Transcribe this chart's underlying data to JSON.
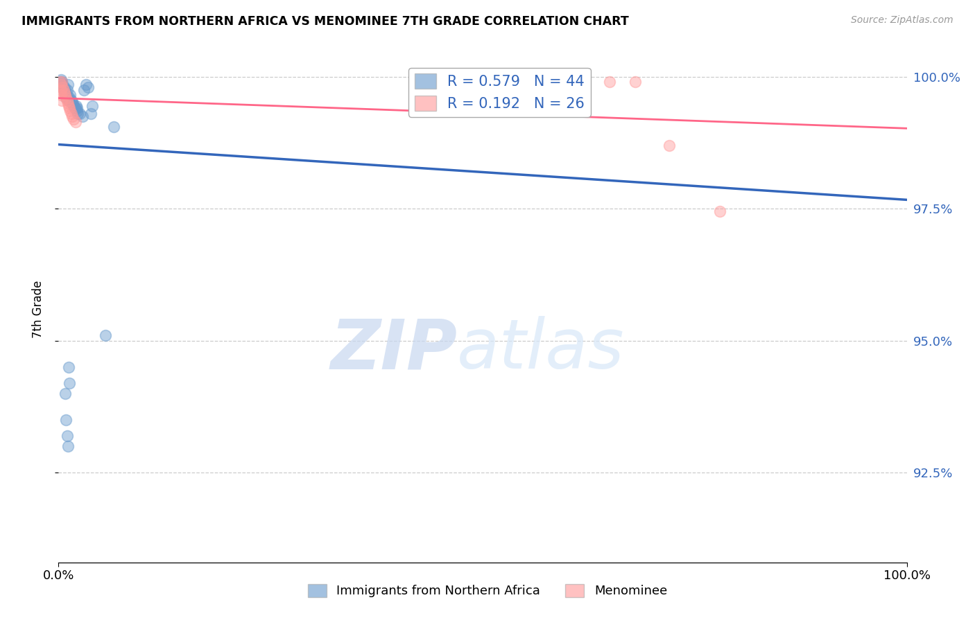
{
  "title": "IMMIGRANTS FROM NORTHERN AFRICA VS MENOMINEE 7TH GRADE CORRELATION CHART",
  "source": "Source: ZipAtlas.com",
  "ylabel": "7th Grade",
  "xlim": [
    0.0,
    1.0
  ],
  "ylim": [
    0.908,
    1.004
  ],
  "yticks": [
    0.925,
    0.95,
    0.975,
    1.0
  ],
  "ytick_labels": [
    "92.5%",
    "95.0%",
    "97.5%",
    "100.0%"
  ],
  "xtick_labels": [
    "0.0%",
    "100.0%"
  ],
  "xticks": [
    0.0,
    1.0
  ],
  "legend_blue_r": "R = 0.579",
  "legend_blue_n": "N = 44",
  "legend_pink_r": "R = 0.192",
  "legend_pink_n": "N = 26",
  "blue_color": "#6699CC",
  "pink_color": "#FF9999",
  "blue_line_color": "#3366BB",
  "pink_line_color": "#FF6688",
  "watermark_zip": "ZIP",
  "watermark_atlas": "atlas",
  "blue_scatter": [
    [
      0.002,
      0.999
    ],
    [
      0.003,
      0.9995
    ],
    [
      0.003,
      0.9985
    ],
    [
      0.004,
      0.999
    ],
    [
      0.005,
      0.9985
    ],
    [
      0.005,
      0.998
    ],
    [
      0.006,
      0.9975
    ],
    [
      0.007,
      0.998
    ],
    [
      0.007,
      0.9975
    ],
    [
      0.008,
      0.997
    ],
    [
      0.008,
      0.9965
    ],
    [
      0.009,
      0.997
    ],
    [
      0.009,
      0.996
    ],
    [
      0.01,
      0.9975
    ],
    [
      0.011,
      0.9985
    ],
    [
      0.011,
      0.996
    ],
    [
      0.012,
      0.9955
    ],
    [
      0.013,
      0.996
    ],
    [
      0.014,
      0.9965
    ],
    [
      0.015,
      0.9955
    ],
    [
      0.016,
      0.995
    ],
    [
      0.017,
      0.995
    ],
    [
      0.018,
      0.9945
    ],
    [
      0.019,
      0.994
    ],
    [
      0.02,
      0.994
    ],
    [
      0.021,
      0.9945
    ],
    [
      0.022,
      0.9935
    ],
    [
      0.022,
      0.994
    ],
    [
      0.023,
      0.993
    ],
    [
      0.025,
      0.993
    ],
    [
      0.028,
      0.9925
    ],
    [
      0.03,
      0.9975
    ],
    [
      0.032,
      0.9985
    ],
    [
      0.035,
      0.998
    ],
    [
      0.038,
      0.993
    ],
    [
      0.04,
      0.9945
    ],
    [
      0.055,
      0.951
    ],
    [
      0.065,
      0.9905
    ],
    [
      0.008,
      0.94
    ],
    [
      0.009,
      0.935
    ],
    [
      0.01,
      0.932
    ],
    [
      0.011,
      0.93
    ],
    [
      0.012,
      0.945
    ],
    [
      0.013,
      0.942
    ]
  ],
  "pink_scatter": [
    [
      0.001,
      0.999
    ],
    [
      0.003,
      0.9985
    ],
    [
      0.003,
      0.9975
    ],
    [
      0.004,
      0.999
    ],
    [
      0.005,
      0.998
    ],
    [
      0.006,
      0.9975
    ],
    [
      0.007,
      0.997
    ],
    [
      0.008,
      0.9965
    ],
    [
      0.009,
      0.996
    ],
    [
      0.01,
      0.9955
    ],
    [
      0.011,
      0.995
    ],
    [
      0.012,
      0.9945
    ],
    [
      0.013,
      0.994
    ],
    [
      0.014,
      0.9935
    ],
    [
      0.015,
      0.993
    ],
    [
      0.016,
      0.9925
    ],
    [
      0.018,
      0.992
    ],
    [
      0.02,
      0.9915
    ],
    [
      0.003,
      0.9965
    ],
    [
      0.004,
      0.9955
    ],
    [
      0.55,
      0.9995
    ],
    [
      0.6,
      0.9995
    ],
    [
      0.65,
      0.999
    ],
    [
      0.68,
      0.999
    ],
    [
      0.72,
      0.987
    ],
    [
      0.78,
      0.9745
    ]
  ]
}
